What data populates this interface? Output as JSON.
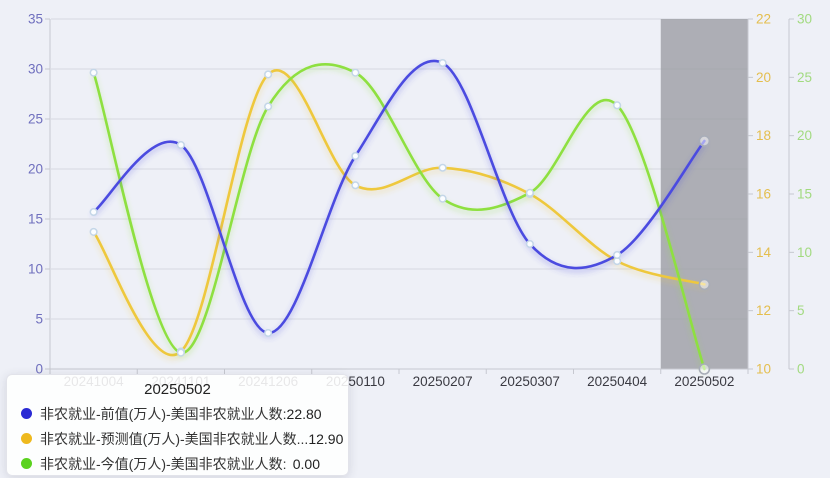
{
  "page": {
    "background": "#eef0f7"
  },
  "chart_data": {
    "type": "line",
    "smooth": true,
    "grid": true,
    "legend_position": "none",
    "categories": [
      "20241004",
      "20241101",
      "20241206",
      "20250110",
      "20250207",
      "20250307",
      "20250404",
      "20250502"
    ],
    "x_axis": {
      "label_color": "#3a3a42",
      "line_color": "#c6c8d0"
    },
    "axes": {
      "left": {
        "min": 0,
        "max": 35,
        "step": 5,
        "label_color": "#6f6fbe",
        "line_color": "#c6c8d0"
      },
      "right_orange": {
        "min": 10,
        "max": 22,
        "step": 2,
        "label_color": "#e4be4e",
        "line_color": "#c6c8d0"
      },
      "right_green": {
        "min": 0,
        "max": 30,
        "step": 5,
        "label_color": "#a2da80",
        "line_color": "#c6c8d0"
      }
    },
    "series": [
      {
        "name": "非农就业-预测值(万人)-美国非农就业人数",
        "color": "#eec83e",
        "axis": "right_orange",
        "values": [
          14.7,
          10.6,
          20.1,
          16.3,
          16.9,
          16.0,
          13.7,
          12.9
        ]
      },
      {
        "name": "非农就业-今值(万人)-美国非农就业人数",
        "color": "#8ee040",
        "axis": "right_green",
        "values": [
          25.4,
          1.4,
          22.5,
          25.4,
          14.6,
          15.1,
          22.6,
          0.0
        ]
      },
      {
        "name": "非农就业-前值(万人)-美国非农就业人数",
        "color": "#4b4be0",
        "axis": "left",
        "values": [
          15.7,
          22.4,
          3.6,
          21.3,
          30.6,
          12.5,
          11.4,
          22.8
        ]
      }
    ],
    "highlight_band": {
      "category": "20250502",
      "color": "rgba(156,158,164,0.8)"
    },
    "gridline_color": "#d7d9e1",
    "marker_fill": "#fbfdff",
    "marker_stroke": "#c4d6e8",
    "end_marker_stroke": "#a8adb8"
  },
  "tooltip": {
    "title": "20250502",
    "rows": [
      {
        "marker_color": "#2a2ad4",
        "label": "非农就业-前值(万人)-美国非农就业人数:",
        "value": "22.80"
      },
      {
        "marker_color": "#eeb91e",
        "label": "非农就业-预测值(万人)-美国非农就业人数...",
        "value": "12.90"
      },
      {
        "marker_color": "#5ad21e",
        "label": "非农就业-今值(万人)-美国非农就业人数:",
        "value": "0.00"
      }
    ]
  }
}
